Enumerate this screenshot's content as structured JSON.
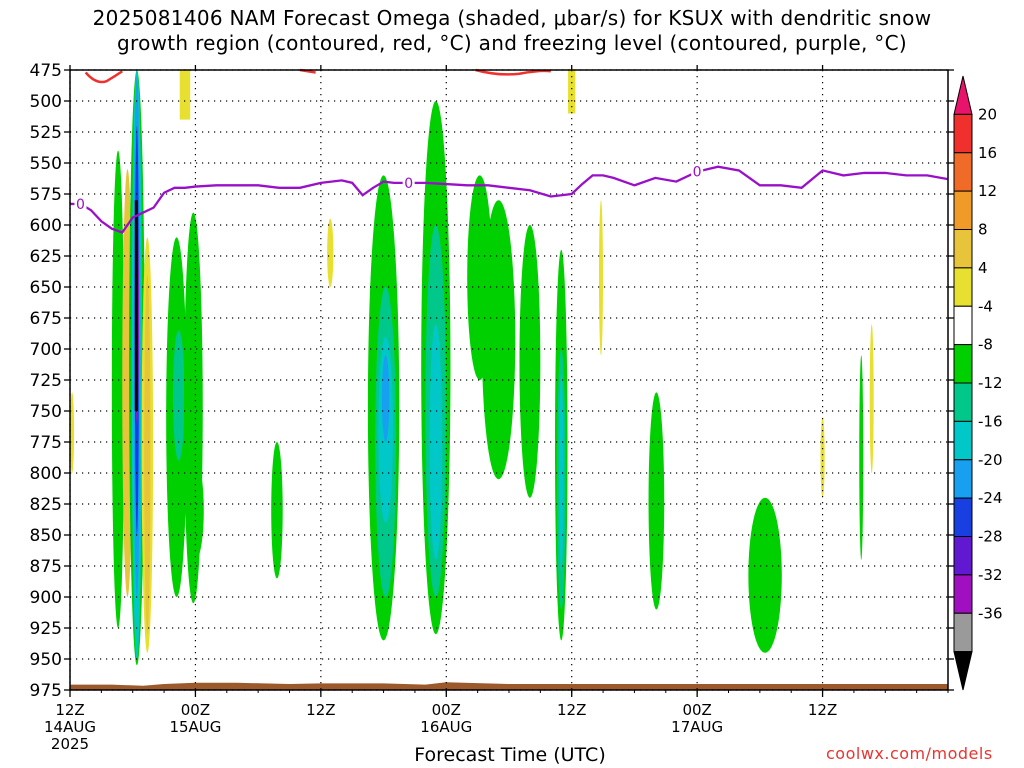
{
  "title_line1": "2025081406 NAM Forecast Omega (shaded, μbar/s) for KSUX with dendritic snow",
  "title_line2": "growth region (contoured, red, °C) and freezing level (contoured, purple, °C)",
  "credit": "coolwx.com/models",
  "chart_data": {
    "type": "heatmap",
    "xlabel": "Forecast Time (UTC)",
    "ylabel": "",
    "ylim": [
      975,
      475
    ],
    "y_ticks": [
      "475",
      "500",
      "525",
      "550",
      "575",
      "600",
      "625",
      "650",
      "675",
      "700",
      "725",
      "750",
      "775",
      "800",
      "825",
      "850",
      "875",
      "900",
      "925",
      "950",
      "975"
    ],
    "x_ticks": [
      {
        "line1": "12Z",
        "line2": "14AUG",
        "line3": "2025"
      },
      {
        "line1": "00Z",
        "line2": "15AUG",
        "line3": ""
      },
      {
        "line1": "12Z",
        "line2": "",
        "line3": ""
      },
      {
        "line1": "00Z",
        "line2": "16AUG",
        "line3": ""
      },
      {
        "line1": "12Z",
        "line2": "",
        "line3": ""
      },
      {
        "line1": "00Z",
        "line2": "17AUG",
        "line3": ""
      },
      {
        "line1": "12Z",
        "line2": "",
        "line3": ""
      }
    ],
    "x_hours_since_init": [
      6,
      18,
      30,
      42,
      54,
      66,
      78
    ],
    "x_range_hours": [
      6,
      90
    ],
    "colorbar": {
      "labels": [
        "20",
        "16",
        "12",
        "8",
        "4",
        "-4",
        "-8",
        "-12",
        "-16",
        "-20",
        "-24",
        "-28",
        "-32",
        "-36"
      ],
      "colors": [
        "#e8146b",
        "#f0302c",
        "#f06a28",
        "#f09a28",
        "#e8c43a",
        "#e8e030",
        "#ffffff",
        "#00d000",
        "#00c88a",
        "#00c8c8",
        "#18a0f0",
        "#1840e0",
        "#6018d0",
        "#a010c0",
        "#9a9a9a",
        "#000000"
      ]
    },
    "freezing_level": {
      "label": "0",
      "color": "#9a10c8",
      "hours": [
        6,
        7,
        8,
        9,
        10,
        11,
        12,
        13,
        14,
        15,
        16,
        17,
        18,
        20,
        22,
        24,
        26,
        28,
        30,
        32,
        33,
        34,
        35,
        36,
        37,
        38,
        40,
        42,
        44,
        46,
        48,
        50,
        52,
        54,
        55,
        56,
        57,
        58,
        60,
        62,
        64,
        66,
        68,
        70,
        72,
        74,
        76,
        78,
        80,
        82,
        84,
        86,
        88,
        90
      ],
      "pressure_hpa": [
        583,
        583,
        588,
        597,
        603,
        606,
        594,
        590,
        586,
        574,
        570,
        570,
        569,
        568,
        568,
        568,
        570,
        570,
        566,
        564,
        566,
        576,
        570,
        565,
        566,
        566,
        566,
        567,
        568,
        568,
        570,
        572,
        577,
        575,
        567,
        560,
        560,
        562,
        568,
        562,
        565,
        557,
        553,
        556,
        568,
        568,
        570,
        556,
        560,
        558,
        558,
        560,
        560,
        563
      ]
    },
    "series": [
      {
        "label": "-4",
        "color": "#00d000"
      },
      {
        "label": "-8",
        "color": "#00c88a"
      },
      {
        "label": "-12",
        "color": "#00c8c8"
      },
      {
        "label": "-16",
        "color": "#18a0f0"
      },
      {
        "label": "-20",
        "color": "#1840e0"
      },
      {
        "label": "-28",
        "color": "#a010c0"
      },
      {
        "label": "4",
        "color": "#e8e030"
      },
      {
        "label": "8",
        "color": "#e8c43a"
      }
    ]
  }
}
